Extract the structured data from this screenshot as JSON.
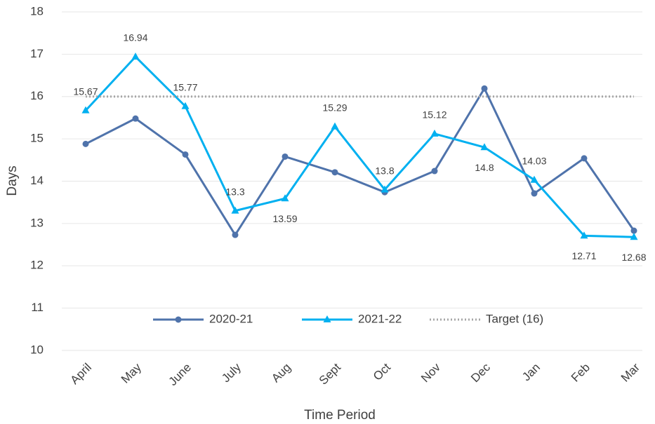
{
  "chart_data": {
    "type": "line",
    "categories": [
      "April",
      "May",
      "June",
      "July",
      "Aug",
      "Sept",
      "Oct",
      "Nov",
      "Dec",
      "Jan",
      "Feb",
      "Mar"
    ],
    "x_label": "Time Period",
    "y_label": "Days",
    "series": [
      {
        "name": "2020-21",
        "color": "#4f73ab",
        "marker": "circle",
        "values": [
          14.88,
          15.48,
          14.63,
          12.73,
          14.58,
          14.21,
          13.74,
          14.24,
          16.19,
          13.71,
          14.54,
          12.83
        ]
      },
      {
        "name": "2021-22",
        "color": "#00b0f0",
        "marker": "triangle",
        "values": [
          15.67,
          16.94,
          15.77,
          13.3,
          13.59,
          15.29,
          13.8,
          15.12,
          14.8,
          14.03,
          12.71,
          12.68
        ]
      },
      {
        "name": "Target (16)",
        "color": "#a6a6a6",
        "dash": "dotted",
        "values": [
          16,
          16,
          16,
          16,
          16,
          16,
          16,
          16,
          16,
          16,
          16,
          16
        ]
      }
    ],
    "data_labels_series": 1,
    "ylim": [
      10,
      18
    ],
    "yticks": [
      10,
      11,
      12,
      13,
      14,
      15,
      16,
      17,
      18
    ],
    "grid": true,
    "legend": "bottom"
  }
}
